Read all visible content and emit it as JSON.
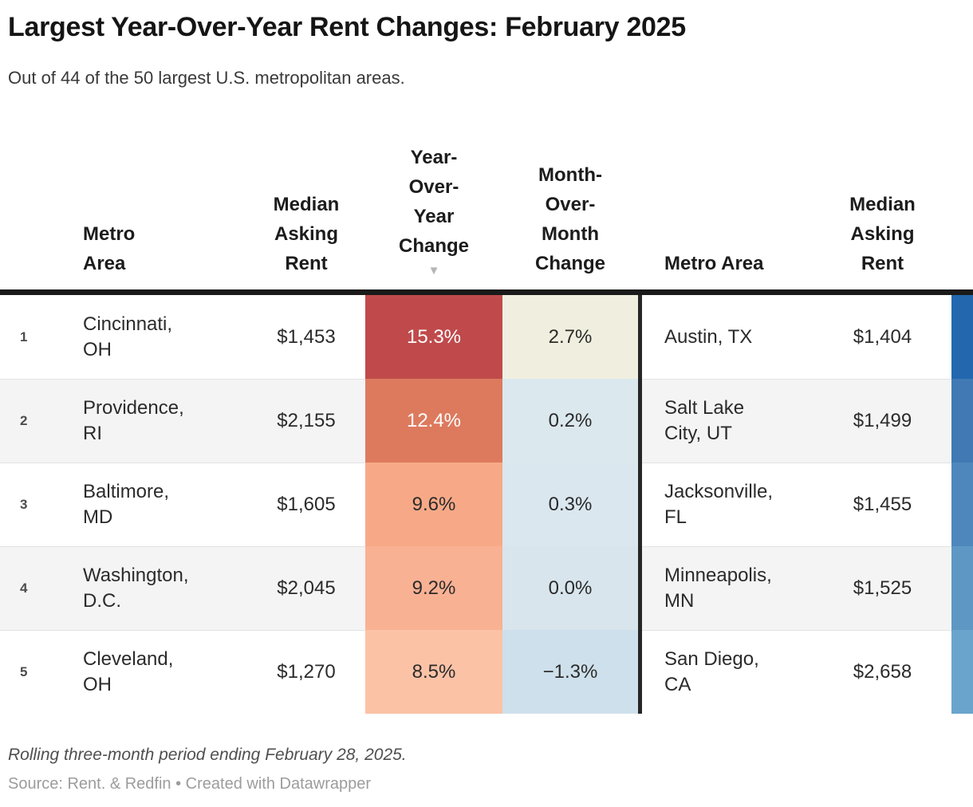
{
  "title": "Largest Year-Over-Year Rent Changes: February 2025",
  "subtitle": "Out of 44 of the 50 largest U.S. metropolitan areas.",
  "chart_data": {
    "type": "table",
    "title": "Largest Year-Over-Year Rent Changes: February 2025",
    "subtitle": "Out of 44 of the 50 largest U.S. metropolitan areas.",
    "sorted_column": "Year-Over-Year Change",
    "sort_direction": "descending",
    "sort_icon": "▼",
    "columns": {
      "metro_area": "Metro\nArea",
      "median_rent": "Median\nAsking\nRent",
      "yoy_change": "Year-\nOver-\nYear\nChange",
      "mom_change": "Month-\nOver-\nMonth\nChange",
      "metro_area_right": "Metro Area",
      "median_rent_right": "Median\nAsking\nRent"
    },
    "rows": [
      {
        "rank": "1",
        "metro": "Cincinnati,\nOH",
        "median_rent": "$1,453",
        "yoy_change": "15.3%",
        "yoy_bg": "#c04a4b",
        "yoy_fg": "#ffffff",
        "mom_change": "2.7%",
        "mom_bg": "#f0efdf",
        "mom_fg": "#2b2b2b",
        "metro_right": "Austin, TX",
        "median_rent_right": "$1,404",
        "strip_color": "#2368ae"
      },
      {
        "rank": "2",
        "metro": "Providence,\nRI",
        "median_rent": "$2,155",
        "yoy_change": "12.4%",
        "yoy_bg": "#dd7a5e",
        "yoy_fg": "#ffffff",
        "mom_change": "0.2%",
        "mom_bg": "#dbe8ee",
        "mom_fg": "#2b2b2b",
        "metro_right": "Salt Lake\nCity, UT",
        "median_rent_right": "$1,499",
        "strip_color": "#4079b4"
      },
      {
        "rank": "3",
        "metro": "Baltimore,\nMD",
        "median_rent": "$1,605",
        "yoy_change": "9.6%",
        "yoy_bg": "#f7a987",
        "yoy_fg": "#2b2b2b",
        "mom_change": "0.3%",
        "mom_bg": "#dae7ee",
        "mom_fg": "#2b2b2b",
        "metro_right": "Jacksonville,\nFL",
        "median_rent_right": "$1,455",
        "strip_color": "#4e87bb"
      },
      {
        "rank": "4",
        "metro": "Washington,\nD.C.",
        "median_rent": "$2,045",
        "yoy_change": "9.2%",
        "yoy_bg": "#f9b193",
        "yoy_fg": "#2b2b2b",
        "mom_change": "0.0%",
        "mom_bg": "#d8e5ec",
        "mom_fg": "#2b2b2b",
        "metro_right": "Minneapolis,\nMN",
        "median_rent_right": "$1,525",
        "strip_color": "#5f97c4"
      },
      {
        "rank": "5",
        "metro": "Cleveland,\nOH",
        "median_rent": "$1,270",
        "yoy_change": "8.5%",
        "yoy_bg": "#fbc2a6",
        "yoy_fg": "#2b2b2b",
        "mom_change": "−1.3%",
        "mom_bg": "#cee0eb",
        "mom_fg": "#2b2b2b",
        "metro_right": "San Diego,\nCA",
        "median_rent_right": "$2,658",
        "strip_color": "#6aa4cd"
      }
    ],
    "note": "Rolling three-month period ending February 28, 2025.",
    "source": "Source: Rent. & Redfin • Created with Datawrapper"
  }
}
